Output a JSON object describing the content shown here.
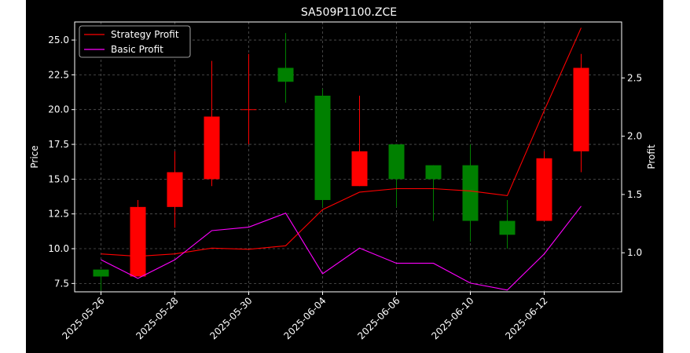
{
  "chart_data": {
    "type": "candlestick",
    "title": "SA509P1100.ZCE",
    "xlabel": "",
    "ylabel": "Price",
    "y2label": "Profit",
    "ylim": [
      6.9,
      26.3
    ],
    "y2lim": [
      0.665,
      2.98
    ],
    "yticks": [
      "7.5",
      "10.0",
      "12.5",
      "15.0",
      "17.5",
      "20.0",
      "22.5",
      "25.0"
    ],
    "y2ticks": [
      "1.0",
      "1.5",
      "2.0",
      "2.5"
    ],
    "xticks": [
      "2025-05-26",
      "2025-05-28",
      "2025-05-30",
      "2025-06-04",
      "2025-06-06",
      "2025-06-10",
      "2025-06-12"
    ],
    "xtick_index": [
      0,
      2,
      4,
      6,
      8,
      10,
      12
    ],
    "grid": true,
    "legend_position": "top-left",
    "colors": {
      "up": "#ff0000",
      "down": "#008000",
      "strategy": "#ff0000",
      "basic": "#ff00ff"
    },
    "candles": [
      {
        "open": 8.5,
        "close": 8.0,
        "high": 8.5,
        "low": 7.0
      },
      {
        "open": 8.0,
        "close": 13.0,
        "high": 13.5,
        "low": 8.0
      },
      {
        "open": 13.0,
        "close": 15.5,
        "high": 17.0,
        "low": 11.5
      },
      {
        "open": 15.0,
        "close": 19.5,
        "high": 23.5,
        "low": 14.5
      },
      {
        "open": 20.0,
        "close": 20.0,
        "high": 24.0,
        "low": 17.5
      },
      {
        "open": 23.0,
        "close": 22.0,
        "high": 25.5,
        "low": 20.5
      },
      {
        "open": 21.0,
        "close": 13.5,
        "high": 21.5,
        "low": 13.0
      },
      {
        "open": 14.5,
        "close": 17.0,
        "high": 21.0,
        "low": 14.5
      },
      {
        "open": 17.5,
        "close": 15.0,
        "high": 17.5,
        "low": 13.0
      },
      {
        "open": 16.0,
        "close": 15.0,
        "high": 16.0,
        "low": 12.0
      },
      {
        "open": 16.0,
        "close": 12.0,
        "high": 17.5,
        "low": 10.5
      },
      {
        "open": 12.0,
        "close": 11.0,
        "high": 13.5,
        "low": 10.0
      },
      {
        "open": 12.0,
        "close": 16.5,
        "high": 17.0,
        "low": 12.0
      },
      {
        "open": 17.0,
        "close": 23.0,
        "high": 24.0,
        "low": 15.5
      }
    ],
    "series": [
      {
        "name": "Strategy Profit",
        "values": [
          0.99,
          0.97,
          0.99,
          1.04,
          1.03,
          1.06,
          1.37,
          1.52,
          1.55,
          1.55,
          1.53,
          1.49,
          2.22,
          2.93
        ]
      },
      {
        "name": "Basic Profit",
        "values": [
          0.94,
          0.78,
          0.94,
          1.19,
          1.22,
          1.34,
          0.82,
          1.04,
          0.91,
          0.91,
          0.74,
          0.68,
          0.99,
          1.4
        ]
      }
    ]
  }
}
